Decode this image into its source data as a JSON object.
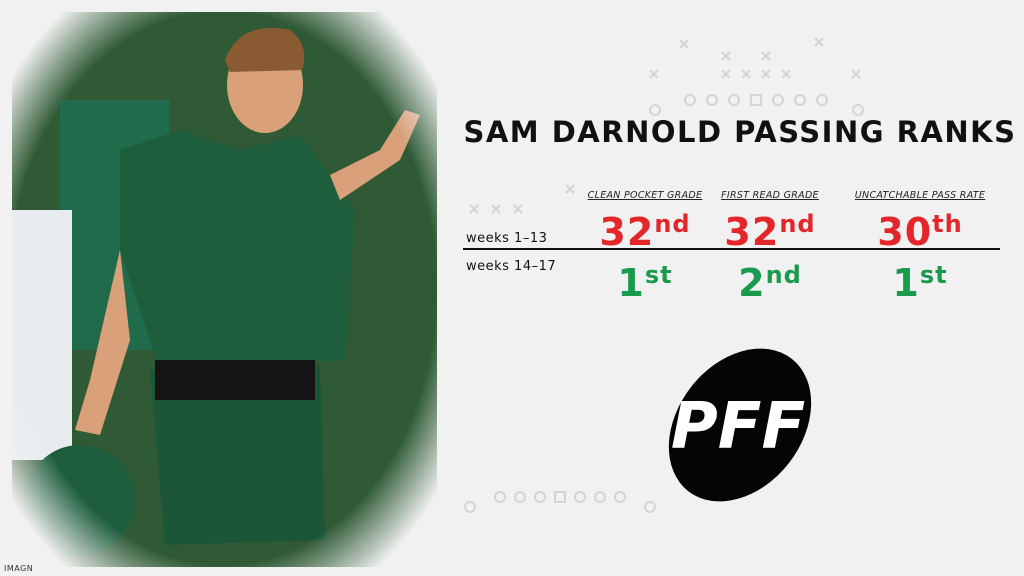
{
  "title": "SAM DARNOLD PASSING RANKS",
  "table": {
    "columns": [
      "CLEAN POCKET GRADE",
      "FIRST READ GRADE",
      "UNCATCHABLE PASS RATE"
    ],
    "rows": [
      {
        "label": "weeks 1–13",
        "cells": [
          {
            "rank": "32",
            "suffix": "nd"
          },
          {
            "rank": "32",
            "suffix": "nd"
          },
          {
            "rank": "30",
            "suffix": "th"
          }
        ]
      },
      {
        "label": "weeks 14–17",
        "cells": [
          {
            "rank": "1",
            "suffix": "st"
          },
          {
            "rank": "2",
            "suffix": "nd"
          },
          {
            "rank": "1",
            "suffix": "st"
          }
        ]
      }
    ]
  },
  "logo": "PFF",
  "credit": "IMAGN"
}
